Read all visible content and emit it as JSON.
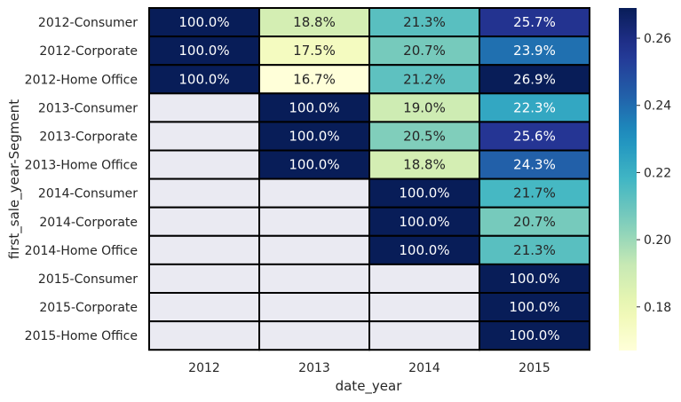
{
  "chart_data": {
    "type": "heatmap",
    "x_categories": [
      "2012",
      "2013",
      "2014",
      "2015"
    ],
    "y_categories": [
      "2012-Consumer",
      "2012-Corporate",
      "2012-Home Office",
      "2013-Consumer",
      "2013-Corporate",
      "2013-Home Office",
      "2014-Consumer",
      "2014-Corporate",
      "2014-Home Office",
      "2015-Consumer",
      "2015-Corporate",
      "2015-Home Office"
    ],
    "values": [
      [
        1.0,
        0.188,
        0.213,
        0.257
      ],
      [
        1.0,
        0.175,
        0.207,
        0.239
      ],
      [
        1.0,
        0.167,
        0.212,
        0.269
      ],
      [
        null,
        1.0,
        0.19,
        0.223
      ],
      [
        null,
        1.0,
        0.205,
        0.256
      ],
      [
        null,
        1.0,
        0.188,
        0.243
      ],
      [
        null,
        null,
        1.0,
        0.217
      ],
      [
        null,
        null,
        1.0,
        0.207
      ],
      [
        null,
        null,
        1.0,
        0.213
      ],
      [
        null,
        null,
        null,
        1.0
      ],
      [
        null,
        null,
        null,
        1.0
      ],
      [
        null,
        null,
        null,
        1.0
      ]
    ],
    "annotations": [
      [
        "100.0%",
        "18.8%",
        "21.3%",
        "25.7%"
      ],
      [
        "100.0%",
        "17.5%",
        "20.7%",
        "23.9%"
      ],
      [
        "100.0%",
        "16.7%",
        "21.2%",
        "26.9%"
      ],
      [
        "",
        "100.0%",
        "19.0%",
        "22.3%"
      ],
      [
        "",
        "100.0%",
        "20.5%",
        "25.6%"
      ],
      [
        "",
        "100.0%",
        "18.8%",
        "24.3%"
      ],
      [
        "",
        "",
        "100.0%",
        "21.7%"
      ],
      [
        "",
        "",
        "100.0%",
        "20.7%"
      ],
      [
        "",
        "",
        "100.0%",
        "21.3%"
      ],
      [
        "",
        "",
        "",
        "100.0%"
      ],
      [
        "",
        "",
        "",
        "100.0%"
      ],
      [
        "",
        "",
        "",
        "100.0%"
      ]
    ],
    "xlabel": "date_year",
    "ylabel": "first_sale_year-Segment",
    "colormap": "YlGnBu",
    "vmin": 0.167,
    "vmax": 0.269,
    "colorbar_ticks": [
      "0.18",
      "0.20",
      "0.22",
      "0.24",
      "0.26"
    ],
    "colorbar_tick_values": [
      0.18,
      0.2,
      0.22,
      0.24,
      0.26
    ],
    "missing_color": "#eaeaf2",
    "cell_border_color": "#000000"
  }
}
